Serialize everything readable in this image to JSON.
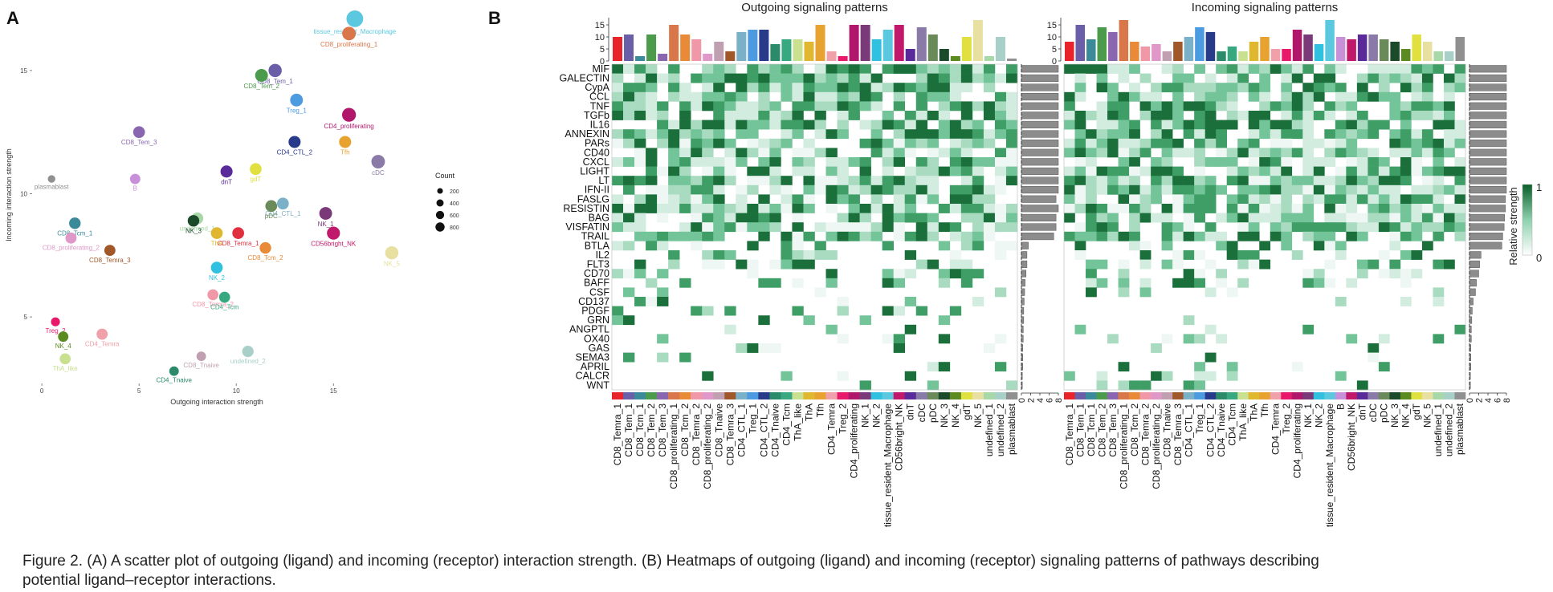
{
  "panel_labels": {
    "a": "A",
    "b": "B"
  },
  "caption": {
    "line1": "Figure 2. (A) A scatter plot of outgoing (ligand) and incoming (receptor) interaction strength. (B) Heatmaps of outgoing (ligand) and incoming (receptor) signaling patterns of pathways describing",
    "line2": "potential ligand–receptor interactions."
  },
  "chart_data": [
    {
      "type": "scatter",
      "xlabel": "Outgoing interaction strength",
      "ylabel": "Incoming interaction strength",
      "xlim": [
        -0.5,
        18.5
      ],
      "ylim": [
        2.3,
        17.6
      ],
      "xticks": [
        0,
        5,
        10,
        15
      ],
      "yticks": [
        5,
        10,
        15
      ],
      "legend": {
        "title": "Count",
        "position": "right",
        "sizes": [
          200,
          400,
          600,
          800
        ]
      },
      "points": [
        {
          "label": "tissue_resident_Macrophage",
          "x": 16.1,
          "y": 17.1,
          "size": 800,
          "color": "#5bc8e0"
        },
        {
          "label": "CD8_proliferating_1",
          "x": 15.8,
          "y": 16.5,
          "size": 450,
          "color": "#d9774a"
        },
        {
          "label": "CD8_Tem_1",
          "x": 12.0,
          "y": 15.0,
          "size": 420,
          "color": "#6a5ea8"
        },
        {
          "label": "CD8_Tem_2",
          "x": 11.3,
          "y": 14.8,
          "size": 380,
          "color": "#4c9a4c"
        },
        {
          "label": "Treg_1",
          "x": 13.1,
          "y": 13.8,
          "size": 380,
          "color": "#4c9ae0"
        },
        {
          "label": "CD4_proliferating",
          "x": 15.8,
          "y": 13.2,
          "size": 480,
          "color": "#b0176a"
        },
        {
          "label": "CD8_Tem_3",
          "x": 5.0,
          "y": 12.5,
          "size": 300,
          "color": "#8a66b0"
        },
        {
          "label": "Tfh",
          "x": 15.6,
          "y": 12.1,
          "size": 320,
          "color": "#e8a230"
        },
        {
          "label": "CD4_CTL_2",
          "x": 13.0,
          "y": 12.1,
          "size": 320,
          "color": "#283a8a"
        },
        {
          "label": "cDC",
          "x": 17.3,
          "y": 11.3,
          "size": 450,
          "color": "#8a7aa8"
        },
        {
          "label": "plasmablast",
          "x": 0.5,
          "y": 10.6,
          "size": 60,
          "color": "#909090"
        },
        {
          "label": "dnT",
          "x": 9.5,
          "y": 10.9,
          "size": 320,
          "color": "#5a2a9a"
        },
        {
          "label": "gdT",
          "x": 11.0,
          "y": 11.0,
          "size": 300,
          "color": "#e0e040"
        },
        {
          "label": "B",
          "x": 4.8,
          "y": 10.6,
          "size": 200,
          "color": "#c890d8"
        },
        {
          "label": "CD4_CTL_1",
          "x": 12.4,
          "y": 9.6,
          "size": 300,
          "color": "#7ab0c8"
        },
        {
          "label": "pDC",
          "x": 11.8,
          "y": 9.5,
          "size": 300,
          "color": "#6a8a5a"
        },
        {
          "label": "undefined_1",
          "x": 8.0,
          "y": 9.0,
          "size": 300,
          "color": "#a8d8a8"
        },
        {
          "label": "NK_3",
          "x": 7.8,
          "y": 8.9,
          "size": 280,
          "color": "#1a4a2a"
        },
        {
          "label": "NK_1",
          "x": 14.6,
          "y": 9.2,
          "size": 380,
          "color": "#7a3a7a"
        },
        {
          "label": "CD8_Tcm_1",
          "x": 1.7,
          "y": 8.8,
          "size": 280,
          "color": "#3a8a9a"
        },
        {
          "label": "ThA",
          "x": 9.0,
          "y": 8.4,
          "size": 300,
          "color": "#e0b830"
        },
        {
          "label": "CD8_Temra_1",
          "x": 10.1,
          "y": 8.4,
          "size": 300,
          "color": "#e03040"
        },
        {
          "label": "CD56bright_NK",
          "x": 15.0,
          "y": 8.4,
          "size": 400,
          "color": "#c0186a"
        },
        {
          "label": "CD8_proliferating_2",
          "x": 1.5,
          "y": 8.2,
          "size": 250,
          "color": "#e098c8"
        },
        {
          "label": "CD8_Temra_3",
          "x": 3.5,
          "y": 7.7,
          "size": 250,
          "color": "#a0582a"
        },
        {
          "label": "CD8_Tcm_2",
          "x": 11.5,
          "y": 7.8,
          "size": 280,
          "color": "#e88a38"
        },
        {
          "label": "NK_5",
          "x": 18.0,
          "y": 7.6,
          "size": 420,
          "color": "#e8e0a0"
        },
        {
          "label": "NK_2",
          "x": 9.0,
          "y": 7.0,
          "size": 300,
          "color": "#30c0e0"
        },
        {
          "label": "CD8_Temra_2",
          "x": 8.8,
          "y": 5.9,
          "size": 240,
          "color": "#f098a8"
        },
        {
          "label": "CD4_Tcm",
          "x": 9.4,
          "y": 5.8,
          "size": 240,
          "color": "#38a880"
        },
        {
          "label": "Treg_2",
          "x": 0.7,
          "y": 4.8,
          "size": 120,
          "color": "#e8186a"
        },
        {
          "label": "CD4_Temra",
          "x": 3.1,
          "y": 4.3,
          "size": 250,
          "color": "#f0a0a8"
        },
        {
          "label": "NK_4",
          "x": 1.1,
          "y": 4.2,
          "size": 200,
          "color": "#5a8a20"
        },
        {
          "label": "ThA_like",
          "x": 1.2,
          "y": 3.3,
          "size": 240,
          "color": "#c8e090"
        },
        {
          "label": "undefined_2",
          "x": 10.6,
          "y": 3.6,
          "size": 270,
          "color": "#a8d0c8"
        },
        {
          "label": "CD8_Tnaive",
          "x": 8.2,
          "y": 3.4,
          "size": 150,
          "color": "#c0a0b0"
        },
        {
          "label": "CD4_Tnaive",
          "x": 6.8,
          "y": 2.8,
          "size": 150,
          "color": "#2a8a6a"
        }
      ]
    },
    {
      "type": "heatmap",
      "title": "Outgoing signaling patterns",
      "legend": {
        "title": "Relative strength",
        "min": "0",
        "max": "1"
      },
      "rows": [
        "MIF",
        "GALECTIN",
        "CypA",
        "CCL",
        "TNF",
        "TGFb",
        "IL16",
        "ANNEXIN",
        "PARs",
        "CD40",
        "CXCL",
        "LIGHT",
        "LT",
        "IFN-II",
        "FASLG",
        "RESISTIN",
        "BAG",
        "VISFATIN",
        "TRAIL",
        "BTLA",
        "IL2",
        "FLT3",
        "CD70",
        "BAFF",
        "CSF",
        "CD137",
        "PDGF",
        "GRN",
        "ANGPTL",
        "OX40",
        "GAS",
        "SEMA3",
        "APRIL",
        "CALCR",
        "WNT"
      ],
      "columns": [
        "CD8_Temra_1",
        "CD8_Tem_1",
        "CD8_Tcm_1",
        "CD8_Tem_2",
        "CD8_Tem_3",
        "CD8_proliferating_1",
        "CD8_Tcm_2",
        "CD8_Temra_2",
        "CD8_proliferating_2",
        "CD8_Tnaive",
        "CD8_Temra_3",
        "CD4_CTL_1",
        "Treg_1",
        "CD4_CTL_2",
        "CD4_Tnaive",
        "CD4_Tcm",
        "ThA_like",
        "ThA",
        "Tfh",
        "CD4_Temra",
        "Treg_2",
        "CD4_proliferating",
        "NK_1",
        "NK_2",
        "tissue_resident_Macrophage",
        "CD56bright_NK",
        "dnT",
        "cDC",
        "pDC",
        "NK_3",
        "NK_4",
        "gdT",
        "NK_5",
        "undefined_1",
        "undefined_2",
        "plasmablast"
      ],
      "colors": [
        "#e8242a",
        "#6a5ea8",
        "#3a8a9a",
        "#4c9a4c",
        "#8a66b0",
        "#d9774a",
        "#e88a38",
        "#f098a8",
        "#e098c8",
        "#c0a0b0",
        "#a0582a",
        "#7ab0c8",
        "#4c9ae0",
        "#283a8a",
        "#2a8a6a",
        "#38a880",
        "#c8e090",
        "#e0b830",
        "#e8a230",
        "#f0a0a8",
        "#e8186a",
        "#b0176a",
        "#7a3a7a",
        "#30c0e0",
        "#5bc8e0",
        "#c0186a",
        "#5a2a9a",
        "#8a7aa8",
        "#6a8a5a",
        "#1a4a2a",
        "#5a8a20",
        "#e0e040",
        "#e8e0a0",
        "#a8d8a8",
        "#a8d0c8",
        "#909090"
      ],
      "column_totals": [
        10,
        11,
        2,
        11,
        3,
        15,
        11,
        9,
        3,
        8,
        4,
        12,
        13,
        13,
        7,
        9,
        9,
        8,
        15,
        4,
        2,
        15,
        15,
        9,
        13,
        15,
        5,
        14,
        11,
        5,
        2,
        10,
        17,
        2,
        10,
        1
      ],
      "column_ylim": [
        0,
        18
      ],
      "column_yticks": [
        0,
        5,
        10,
        15
      ],
      "row_totals": [
        8,
        8,
        8,
        8,
        8,
        8,
        8,
        8,
        8,
        8,
        8,
        8,
        8,
        8,
        7.5,
        8,
        7.5,
        7.5,
        7,
        1.5,
        1.2,
        1.2,
        1,
        0.8,
        0.7,
        0.6,
        0.5,
        0.5,
        0.4,
        0.4,
        0.3,
        0.3,
        0.3,
        0.2,
        0.2
      ],
      "row_xlim": [
        0,
        8
      ],
      "row_xticks": [
        0,
        2,
        4,
        6,
        8
      ]
    },
    {
      "type": "heatmap",
      "title": "Incoming signaling patterns",
      "legend": {
        "title": "Relative strength",
        "min": "0",
        "max": "1"
      },
      "rows": [
        "MIF",
        "GALECTIN",
        "CypA",
        "CCL",
        "TNF",
        "TGFb",
        "IL16",
        "ANNEXIN",
        "PARs",
        "CD40",
        "CXCL",
        "LIGHT",
        "LT",
        "IFN-II",
        "FASLG",
        "RESISTIN",
        "BAG",
        "VISFATIN",
        "TRAIL",
        "BTLA",
        "IL2",
        "FLT3",
        "CD70",
        "BAFF",
        "CSF",
        "CD137",
        "PDGF",
        "GRN",
        "ANGPTL",
        "OX40",
        "GAS",
        "SEMA3",
        "APRIL",
        "CALCR",
        "WNT"
      ],
      "columns": [
        "CD8_Temra_1",
        "CD8_Tem_1",
        "CD8_Tcm_1",
        "CD8_Tem_2",
        "CD8_Tem_3",
        "CD8_proliferating_1",
        "CD8_Tcm_2",
        "CD8_Temra_2",
        "CD8_proliferating_2",
        "CD8_Tnaive",
        "CD8_Temra_3",
        "CD4_CTL_1",
        "Treg_1",
        "CD4_CTL_2",
        "CD4_Tnaive",
        "CD4_Tcm",
        "ThA_like",
        "ThA",
        "Tfh",
        "CD4_Temra",
        "Treg_2",
        "CD4_proliferating",
        "NK_1",
        "NK_2",
        "tissue_resident_Macrophage",
        "B",
        "CD56bright_NK",
        "dnT",
        "cDC",
        "pDC",
        "NK_3",
        "NK_4",
        "gdT",
        "NK_5",
        "undefined_1",
        "undefined_2",
        "plasmablast"
      ],
      "colors": [
        "#e8242a",
        "#6a5ea8",
        "#3a8a9a",
        "#4c9a4c",
        "#8a66b0",
        "#d9774a",
        "#e88a38",
        "#f098a8",
        "#e098c8",
        "#c0a0b0",
        "#a0582a",
        "#7ab0c8",
        "#4c9ae0",
        "#283a8a",
        "#2a8a6a",
        "#38a880",
        "#c8e090",
        "#e0b830",
        "#e8a230",
        "#f0a0a8",
        "#e8186a",
        "#b0176a",
        "#7a3a7a",
        "#30c0e0",
        "#5bc8e0",
        "#c890d8",
        "#c0186a",
        "#5a2a9a",
        "#8a7aa8",
        "#6a8a5a",
        "#1a4a2a",
        "#5a8a20",
        "#e0e040",
        "#e8e0a0",
        "#a8d8a8",
        "#a8d0c8",
        "#909090"
      ],
      "column_totals": [
        8,
        15,
        9,
        14,
        12,
        17,
        8,
        6,
        7,
        4,
        8,
        10,
        14,
        12,
        4,
        6,
        4,
        8,
        10,
        5,
        5,
        13,
        11,
        7,
        17,
        10,
        9,
        11,
        11,
        9,
        8,
        5,
        11,
        8,
        4,
        4,
        10
      ],
      "column_ylim": [
        0,
        18
      ],
      "column_yticks": [
        0,
        5,
        10,
        15
      ],
      "row_totals": [
        8,
        8,
        8,
        8,
        8,
        8,
        8,
        8,
        8,
        8,
        8,
        8,
        8,
        8,
        7.8,
        7.8,
        7.6,
        7.5,
        7.2,
        7,
        2.5,
        2.2,
        2,
        1.5,
        1.3,
        0.8,
        0.6,
        0.5,
        0.4,
        0.4,
        0.3,
        0.3,
        0.3,
        0.2,
        0.2
      ],
      "row_xlim": [
        0,
        8
      ],
      "row_xticks": [
        0,
        2,
        4,
        6,
        8
      ]
    }
  ]
}
